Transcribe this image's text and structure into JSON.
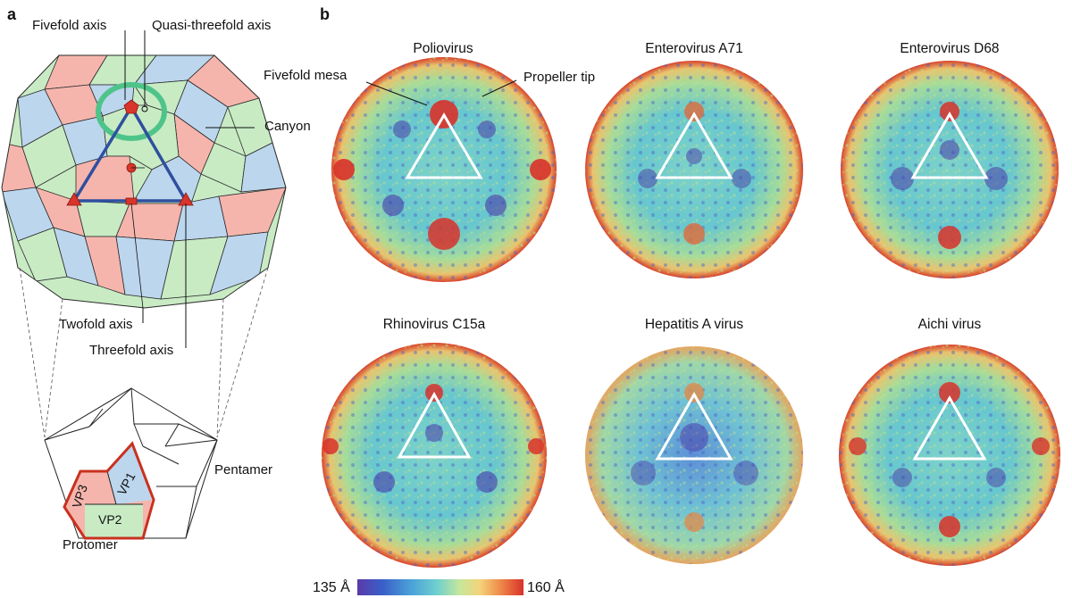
{
  "panel_a": {
    "letter": "a",
    "labels": {
      "fivefold_axis": "Fivefold axis",
      "quasi_threefold_axis": "Quasi-threefold axis",
      "canyon": "Canyon",
      "twofold_axis": "Twofold axis",
      "threefold_axis": "Threefold axis",
      "pentamer": "Pentamer",
      "protomer": "Protomer",
      "vp1": "VP1",
      "vp2": "VP2",
      "vp3": "VP3"
    },
    "colors": {
      "vp1_blue": "#bcd6ee",
      "vp2_green": "#c8ebc4",
      "vp3_red": "#f5b5ad",
      "triangle": "#2f4f9f",
      "canyon": "#4fc48a",
      "axis_marker": "#d9352a",
      "protomer_outline": "#c8321f"
    }
  },
  "panel_b": {
    "letter": "b",
    "annotations": {
      "fivefold_mesa": "Fivefold mesa",
      "propeller_tip": "Propeller tip"
    },
    "viruses": [
      {
        "name": "Poliovirus"
      },
      {
        "name": "Enterovirus A71"
      },
      {
        "name": "Enterovirus D68"
      },
      {
        "name": "Rhinovirus C15a"
      },
      {
        "name": "Hepatitis A virus"
      },
      {
        "name": "Aichi virus"
      }
    ],
    "scale": {
      "min_label": "135 Å",
      "max_label": "160 Å"
    },
    "colors": {
      "low": "#4a3aa8",
      "mid": "#6fd0cf",
      "high": "#d8322a"
    }
  }
}
